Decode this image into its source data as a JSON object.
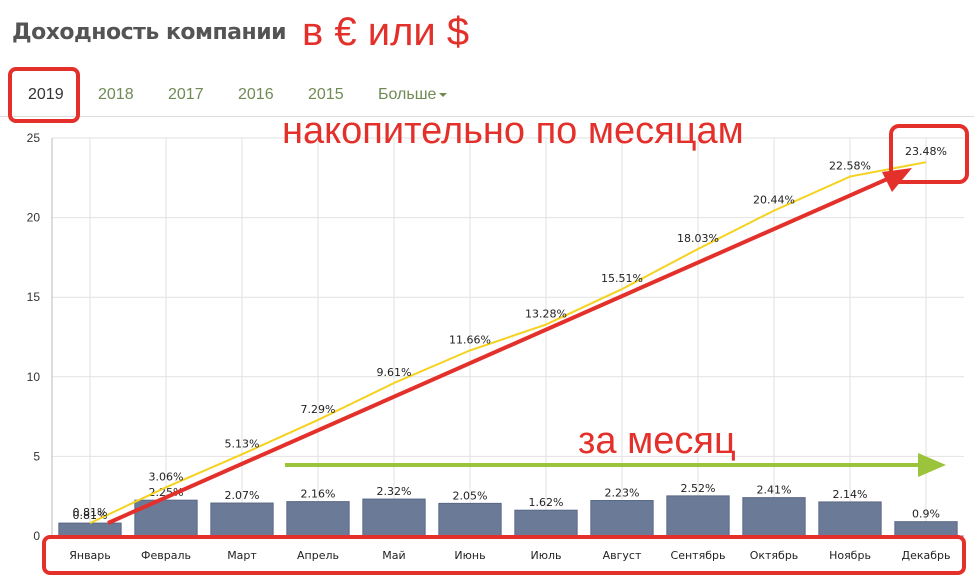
{
  "header": {
    "title": "Доходность компании",
    "currency_note": "в € или $"
  },
  "tabs": {
    "items": [
      "2019",
      "2018",
      "2017",
      "2016",
      "2015"
    ],
    "more_label": "Больше",
    "active": "2019"
  },
  "annotations": {
    "cumulative": "накопительно по месяцам",
    "monthly": "за месяц"
  },
  "colors": {
    "bar": "#6b7a96",
    "line": "#f5d220",
    "annotation_red": "#e3302b",
    "annotation_green": "#9bc33b"
  },
  "chart_data": {
    "type": "bar",
    "categories": [
      "Январь",
      "Февраль",
      "Март",
      "Апрель",
      "Май",
      "Июнь",
      "Июль",
      "Август",
      "Сентябрь",
      "Октябрь",
      "Ноябрь",
      "Декабрь"
    ],
    "series": [
      {
        "type": "bar",
        "values": [
          0.81,
          2.25,
          2.07,
          2.16,
          2.32,
          2.05,
          1.62,
          2.23,
          2.52,
          2.41,
          2.14,
          0.9
        ],
        "labels": [
          "0.81%",
          "2.25%",
          "2.07%",
          "2.16%",
          "2.32%",
          "2.05%",
          "1.62%",
          "2.23%",
          "2.52%",
          "2.41%",
          "2.14%",
          "0.9%"
        ]
      },
      {
        "type": "line",
        "values": [
          0.81,
          3.06,
          5.13,
          7.29,
          9.61,
          11.66,
          13.28,
          15.51,
          18.03,
          20.44,
          22.58,
          23.48
        ],
        "labels": [
          "0.81%",
          "3.06%",
          "5.13%",
          "7.29%",
          "9.61%",
          "11.66%",
          "13.28%",
          "15.51%",
          "18.03%",
          "20.44%",
          "22.58%",
          "23.48%"
        ]
      }
    ],
    "yticks": [
      "0",
      "5",
      "10",
      "15",
      "20",
      "25"
    ],
    "ylim": [
      0,
      25
    ],
    "grid": true
  }
}
